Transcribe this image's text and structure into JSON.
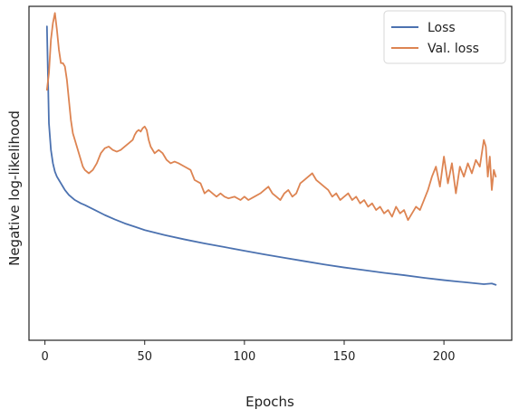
{
  "chart_data": {
    "type": "line",
    "title": "",
    "xlabel": "Epochs",
    "ylabel": "Negative log-likelihood",
    "xlim": [
      -8,
      234
    ],
    "ylim": [
      0,
      1
    ],
    "x_ticks": [
      0,
      50,
      100,
      150,
      200
    ],
    "y_ticks": [],
    "grid": false,
    "legend": "top-right",
    "colors": {
      "loss": "#4c72b0",
      "val_loss": "#dd8452"
    },
    "series": [
      {
        "name": "Loss",
        "points": [
          [
            1,
            0.94
          ],
          [
            2,
            0.65
          ],
          [
            3,
            0.57
          ],
          [
            4,
            0.53
          ],
          [
            5,
            0.505
          ],
          [
            6,
            0.49
          ],
          [
            7,
            0.48
          ],
          [
            8,
            0.47
          ],
          [
            9,
            0.46
          ],
          [
            10,
            0.45
          ],
          [
            12,
            0.435
          ],
          [
            15,
            0.42
          ],
          [
            18,
            0.41
          ],
          [
            20,
            0.405
          ],
          [
            25,
            0.39
          ],
          [
            30,
            0.375
          ],
          [
            35,
            0.362
          ],
          [
            40,
            0.35
          ],
          [
            45,
            0.34
          ],
          [
            50,
            0.33
          ],
          [
            60,
            0.315
          ],
          [
            70,
            0.302
          ],
          [
            80,
            0.29
          ],
          [
            90,
            0.279
          ],
          [
            100,
            0.268
          ],
          [
            110,
            0.257
          ],
          [
            120,
            0.247
          ],
          [
            130,
            0.237
          ],
          [
            140,
            0.227
          ],
          [
            150,
            0.218
          ],
          [
            160,
            0.21
          ],
          [
            170,
            0.202
          ],
          [
            180,
            0.195
          ],
          [
            190,
            0.187
          ],
          [
            200,
            0.18
          ],
          [
            210,
            0.174
          ],
          [
            220,
            0.168
          ],
          [
            224,
            0.17
          ],
          [
            226,
            0.166
          ]
        ]
      },
      {
        "name": "Val. loss",
        "points": [
          [
            1,
            0.75
          ],
          [
            2,
            0.8
          ],
          [
            3,
            0.9
          ],
          [
            4,
            0.95
          ],
          [
            5,
            0.98
          ],
          [
            6,
            0.93
          ],
          [
            7,
            0.87
          ],
          [
            8,
            0.83
          ],
          [
            9,
            0.83
          ],
          [
            10,
            0.82
          ],
          [
            11,
            0.78
          ],
          [
            12,
            0.72
          ],
          [
            13,
            0.66
          ],
          [
            14,
            0.62
          ],
          [
            15,
            0.6
          ],
          [
            16,
            0.58
          ],
          [
            17,
            0.56
          ],
          [
            18,
            0.54
          ],
          [
            19,
            0.52
          ],
          [
            20,
            0.51
          ],
          [
            22,
            0.5
          ],
          [
            24,
            0.51
          ],
          [
            26,
            0.53
          ],
          [
            28,
            0.56
          ],
          [
            30,
            0.575
          ],
          [
            32,
            0.58
          ],
          [
            34,
            0.57
          ],
          [
            36,
            0.565
          ],
          [
            38,
            0.57
          ],
          [
            40,
            0.58
          ],
          [
            42,
            0.59
          ],
          [
            44,
            0.6
          ],
          [
            45,
            0.615
          ],
          [
            46,
            0.625
          ],
          [
            47,
            0.63
          ],
          [
            48,
            0.625
          ],
          [
            49,
            0.635
          ],
          [
            50,
            0.64
          ],
          [
            51,
            0.63
          ],
          [
            52,
            0.6
          ],
          [
            53,
            0.58
          ],
          [
            55,
            0.56
          ],
          [
            57,
            0.57
          ],
          [
            59,
            0.56
          ],
          [
            61,
            0.54
          ],
          [
            63,
            0.53
          ],
          [
            65,
            0.535
          ],
          [
            67,
            0.53
          ],
          [
            70,
            0.52
          ],
          [
            73,
            0.51
          ],
          [
            75,
            0.48
          ],
          [
            78,
            0.47
          ],
          [
            80,
            0.44
          ],
          [
            82,
            0.45
          ],
          [
            84,
            0.44
          ],
          [
            86,
            0.43
          ],
          [
            88,
            0.44
          ],
          [
            90,
            0.43
          ],
          [
            92,
            0.425
          ],
          [
            95,
            0.43
          ],
          [
            98,
            0.42
          ],
          [
            100,
            0.43
          ],
          [
            102,
            0.42
          ],
          [
            105,
            0.43
          ],
          [
            108,
            0.44
          ],
          [
            110,
            0.45
          ],
          [
            112,
            0.46
          ],
          [
            114,
            0.44
          ],
          [
            116,
            0.43
          ],
          [
            118,
            0.42
          ],
          [
            120,
            0.44
          ],
          [
            122,
            0.45
          ],
          [
            124,
            0.43
          ],
          [
            126,
            0.44
          ],
          [
            128,
            0.47
          ],
          [
            130,
            0.48
          ],
          [
            132,
            0.49
          ],
          [
            134,
            0.5
          ],
          [
            136,
            0.48
          ],
          [
            138,
            0.47
          ],
          [
            140,
            0.46
          ],
          [
            142,
            0.45
          ],
          [
            144,
            0.43
          ],
          [
            146,
            0.44
          ],
          [
            148,
            0.42
          ],
          [
            150,
            0.43
          ],
          [
            152,
            0.44
          ],
          [
            154,
            0.42
          ],
          [
            156,
            0.43
          ],
          [
            158,
            0.41
          ],
          [
            160,
            0.42
          ],
          [
            162,
            0.4
          ],
          [
            164,
            0.41
          ],
          [
            166,
            0.39
          ],
          [
            168,
            0.4
          ],
          [
            170,
            0.38
          ],
          [
            172,
            0.39
          ],
          [
            174,
            0.37
          ],
          [
            176,
            0.4
          ],
          [
            178,
            0.38
          ],
          [
            180,
            0.39
          ],
          [
            182,
            0.36
          ],
          [
            184,
            0.38
          ],
          [
            186,
            0.4
          ],
          [
            188,
            0.39
          ],
          [
            190,
            0.42
          ],
          [
            192,
            0.45
          ],
          [
            194,
            0.49
          ],
          [
            196,
            0.52
          ],
          [
            198,
            0.46
          ],
          [
            200,
            0.55
          ],
          [
            202,
            0.47
          ],
          [
            204,
            0.53
          ],
          [
            206,
            0.44
          ],
          [
            208,
            0.52
          ],
          [
            210,
            0.49
          ],
          [
            212,
            0.53
          ],
          [
            214,
            0.5
          ],
          [
            216,
            0.54
          ],
          [
            218,
            0.52
          ],
          [
            220,
            0.6
          ],
          [
            221,
            0.58
          ],
          [
            222,
            0.49
          ],
          [
            223,
            0.55
          ],
          [
            224,
            0.45
          ],
          [
            225,
            0.51
          ],
          [
            226,
            0.49
          ]
        ]
      }
    ]
  }
}
